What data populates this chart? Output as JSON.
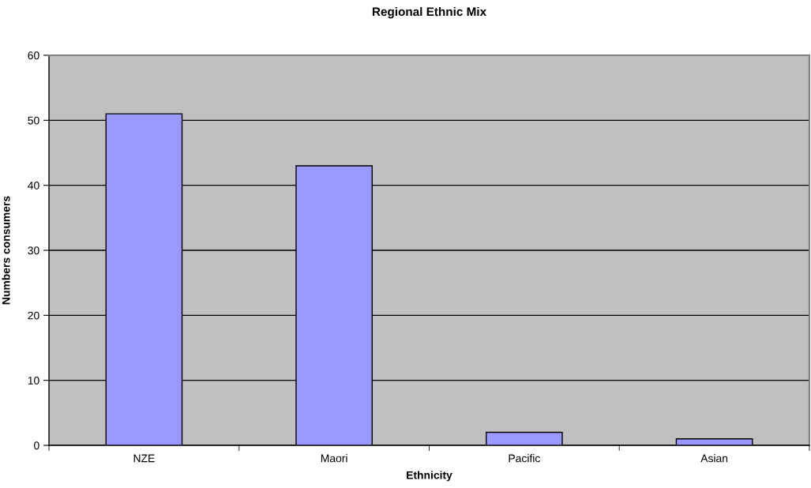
{
  "chart_data": {
    "type": "bar",
    "title": "Regional Ethnic Mix",
    "xlabel": "Ethnicity",
    "ylabel": "Numbers consumers",
    "categories": [
      "NZE",
      "Maori",
      "Pacific",
      "Asian"
    ],
    "values": [
      51,
      43,
      2,
      1
    ],
    "color": "#9999ff",
    "ylim": [
      0,
      60
    ],
    "yticks": [
      0,
      10,
      20,
      30,
      40,
      50,
      60
    ],
    "grid": "y",
    "legend": false
  }
}
